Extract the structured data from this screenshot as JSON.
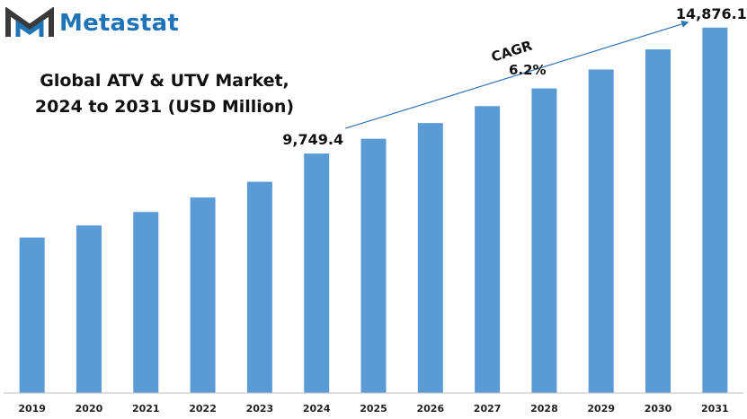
{
  "brand": {
    "name": "Metastat",
    "color": "#1f74b8"
  },
  "chart_data": {
    "type": "bar",
    "title": [
      "Global ATV & UTV Market,",
      "2024 to 2031 (USD Million)"
    ],
    "categories": [
      "2019",
      "2020",
      "2021",
      "2022",
      "2023",
      "2024",
      "2025",
      "2026",
      "2027",
      "2028",
      "2029",
      "2030",
      "2031"
    ],
    "values": [
      6330,
      6820,
      7370,
      7960,
      8600,
      9749.4,
      10350,
      10990,
      11680,
      12400,
      13170,
      13990,
      14876.1
    ],
    "data_labels": {
      "2024": "9,749.4",
      "2031": "14,876.1"
    },
    "annotation": {
      "label": "CAGR",
      "value": "6.2%",
      "from": "2024",
      "to": "2031"
    },
    "ylim": [
      0,
      16000
    ],
    "bar_color": "#5b9bd5",
    "axis_color": "#bfbfbf",
    "grid": false,
    "legend": "none"
  }
}
